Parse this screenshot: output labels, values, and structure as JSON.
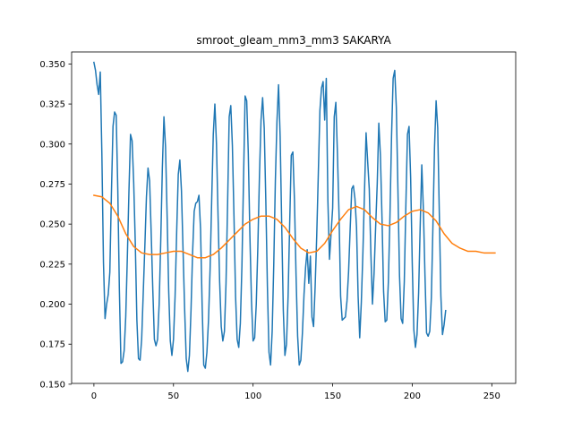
{
  "chart_data": {
    "type": "line",
    "title": "smroot_gleam_mm3_mm3 SAKARYA",
    "xlabel": "",
    "ylabel": "",
    "xlim": [
      -14,
      265
    ],
    "ylim": [
      0.1505,
      0.3575
    ],
    "x_ticks": [
      0,
      50,
      100,
      150,
      200,
      250
    ],
    "y_ticks": [
      0.15,
      0.175,
      0.2,
      0.225,
      0.25,
      0.275,
      0.3,
      0.325,
      0.35
    ],
    "grid": false,
    "legend": "none",
    "series": [
      {
        "color": "#1f77b4",
        "points": [
          [
            0,
            0.351
          ],
          [
            1,
            0.346
          ],
          [
            2,
            0.337
          ],
          [
            3,
            0.331
          ],
          [
            4,
            0.345
          ],
          [
            5,
            0.294
          ],
          [
            6,
            0.226
          ],
          [
            7,
            0.191
          ],
          [
            8,
            0.2
          ],
          [
            9,
            0.206
          ],
          [
            10,
            0.22
          ],
          [
            11,
            0.269
          ],
          [
            12,
            0.311
          ],
          [
            13,
            0.32
          ],
          [
            14,
            0.318
          ],
          [
            15,
            0.272
          ],
          [
            16,
            0.209
          ],
          [
            17,
            0.163
          ],
          [
            18,
            0.164
          ],
          [
            19,
            0.171
          ],
          [
            20,
            0.192
          ],
          [
            21,
            0.229
          ],
          [
            22,
            0.27
          ],
          [
            23,
            0.306
          ],
          [
            24,
            0.302
          ],
          [
            25,
            0.276
          ],
          [
            26,
            0.238
          ],
          [
            27,
            0.19
          ],
          [
            28,
            0.166
          ],
          [
            29,
            0.165
          ],
          [
            30,
            0.178
          ],
          [
            31,
            0.207
          ],
          [
            32,
            0.236
          ],
          [
            33,
            0.267
          ],
          [
            34,
            0.285
          ],
          [
            35,
            0.277
          ],
          [
            36,
            0.244
          ],
          [
            37,
            0.209
          ],
          [
            38,
            0.178
          ],
          [
            39,
            0.174
          ],
          [
            40,
            0.178
          ],
          [
            41,
            0.2
          ],
          [
            42,
            0.24
          ],
          [
            43,
            0.285
          ],
          [
            44,
            0.317
          ],
          [
            45,
            0.298
          ],
          [
            46,
            0.255
          ],
          [
            47,
            0.208
          ],
          [
            48,
            0.177
          ],
          [
            49,
            0.168
          ],
          [
            50,
            0.178
          ],
          [
            51,
            0.205
          ],
          [
            52,
            0.245
          ],
          [
            53,
            0.281
          ],
          [
            54,
            0.29
          ],
          [
            55,
            0.271
          ],
          [
            56,
            0.234
          ],
          [
            57,
            0.197
          ],
          [
            58,
            0.166
          ],
          [
            59,
            0.158
          ],
          [
            60,
            0.168
          ],
          [
            61,
            0.196
          ],
          [
            62,
            0.232
          ],
          [
            63,
            0.258
          ],
          [
            64,
            0.263
          ],
          [
            65,
            0.264
          ],
          [
            66,
            0.268
          ],
          [
            67,
            0.247
          ],
          [
            68,
            0.199
          ],
          [
            69,
            0.162
          ],
          [
            70,
            0.16
          ],
          [
            71,
            0.17
          ],
          [
            72,
            0.19
          ],
          [
            73,
            0.222
          ],
          [
            74,
            0.265
          ],
          [
            75,
            0.306
          ],
          [
            76,
            0.325
          ],
          [
            77,
            0.3
          ],
          [
            78,
            0.255
          ],
          [
            79,
            0.214
          ],
          [
            80,
            0.186
          ],
          [
            81,
            0.177
          ],
          [
            82,
            0.183
          ],
          [
            83,
            0.213
          ],
          [
            84,
            0.263
          ],
          [
            85,
            0.317
          ],
          [
            86,
            0.324
          ],
          [
            87,
            0.299
          ],
          [
            88,
            0.255
          ],
          [
            89,
            0.205
          ],
          [
            90,
            0.178
          ],
          [
            91,
            0.173
          ],
          [
            92,
            0.188
          ],
          [
            93,
            0.224
          ],
          [
            94,
            0.278
          ],
          [
            95,
            0.33
          ],
          [
            96,
            0.327
          ],
          [
            97,
            0.294
          ],
          [
            98,
            0.243
          ],
          [
            99,
            0.202
          ],
          [
            100,
            0.177
          ],
          [
            101,
            0.179
          ],
          [
            102,
            0.2
          ],
          [
            103,
            0.236
          ],
          [
            104,
            0.28
          ],
          [
            105,
            0.315
          ],
          [
            106,
            0.329
          ],
          [
            107,
            0.31
          ],
          [
            108,
            0.265
          ],
          [
            109,
            0.211
          ],
          [
            110,
            0.17
          ],
          [
            111,
            0.162
          ],
          [
            112,
            0.183
          ],
          [
            113,
            0.225
          ],
          [
            114,
            0.277
          ],
          [
            115,
            0.314
          ],
          [
            116,
            0.337
          ],
          [
            117,
            0.305
          ],
          [
            118,
            0.249
          ],
          [
            119,
            0.196
          ],
          [
            120,
            0.168
          ],
          [
            121,
            0.175
          ],
          [
            122,
            0.205
          ],
          [
            123,
            0.25
          ],
          [
            124,
            0.293
          ],
          [
            125,
            0.295
          ],
          [
            126,
            0.265
          ],
          [
            127,
            0.218
          ],
          [
            128,
            0.18
          ],
          [
            129,
            0.162
          ],
          [
            130,
            0.165
          ],
          [
            131,
            0.182
          ],
          [
            132,
            0.206
          ],
          [
            133,
            0.223
          ],
          [
            134,
            0.234
          ],
          [
            135,
            0.213
          ],
          [
            136,
            0.23
          ],
          [
            137,
            0.192
          ],
          [
            138,
            0.186
          ],
          [
            139,
            0.211
          ],
          [
            140,
            0.243
          ],
          [
            141,
            0.282
          ],
          [
            142,
            0.321
          ],
          [
            143,
            0.335
          ],
          [
            144,
            0.339
          ],
          [
            145,
            0.315
          ],
          [
            146,
            0.341
          ],
          [
            147,
            0.265
          ],
          [
            148,
            0.228
          ],
          [
            149,
            0.244
          ],
          [
            150,
            0.26
          ],
          [
            151,
            0.317
          ],
          [
            152,
            0.326
          ],
          [
            153,
            0.294
          ],
          [
            154,
            0.256
          ],
          [
            155,
            0.205
          ],
          [
            156,
            0.19
          ],
          [
            157,
            0.191
          ],
          [
            158,
            0.192
          ],
          [
            159,
            0.202
          ],
          [
            160,
            0.22
          ],
          [
            161,
            0.247
          ],
          [
            162,
            0.272
          ],
          [
            163,
            0.274
          ],
          [
            164,
            0.266
          ],
          [
            165,
            0.248
          ],
          [
            166,
            0.205
          ],
          [
            167,
            0.179
          ],
          [
            168,
            0.201
          ],
          [
            169,
            0.232
          ],
          [
            170,
            0.27
          ],
          [
            171,
            0.307
          ],
          [
            172,
            0.289
          ],
          [
            173,
            0.272
          ],
          [
            174,
            0.232
          ],
          [
            175,
            0.2
          ],
          [
            176,
            0.219
          ],
          [
            177,
            0.248
          ],
          [
            178,
            0.275
          ],
          [
            179,
            0.313
          ],
          [
            180,
            0.293
          ],
          [
            181,
            0.254
          ],
          [
            182,
            0.208
          ],
          [
            183,
            0.189
          ],
          [
            184,
            0.19
          ],
          [
            185,
            0.214
          ],
          [
            186,
            0.255
          ],
          [
            187,
            0.305
          ],
          [
            188,
            0.341
          ],
          [
            189,
            0.346
          ],
          [
            190,
            0.323
          ],
          [
            191,
            0.272
          ],
          [
            192,
            0.218
          ],
          [
            193,
            0.191
          ],
          [
            194,
            0.188
          ],
          [
            195,
            0.214
          ],
          [
            196,
            0.262
          ],
          [
            197,
            0.306
          ],
          [
            198,
            0.311
          ],
          [
            199,
            0.279
          ],
          [
            200,
            0.226
          ],
          [
            201,
            0.184
          ],
          [
            202,
            0.173
          ],
          [
            203,
            0.181
          ],
          [
            204,
            0.207
          ],
          [
            205,
            0.249
          ],
          [
            206,
            0.287
          ],
          [
            207,
            0.259
          ],
          [
            208,
            0.218
          ],
          [
            209,
            0.182
          ],
          [
            210,
            0.18
          ],
          [
            211,
            0.183
          ],
          [
            212,
            0.204
          ],
          [
            213,
            0.249
          ],
          [
            214,
            0.298
          ],
          [
            215,
            0.327
          ],
          [
            216,
            0.31
          ],
          [
            217,
            0.257
          ],
          [
            218,
            0.205
          ],
          [
            219,
            0.181
          ],
          [
            220,
            0.187
          ],
          [
            221,
            0.196
          ]
        ]
      },
      {
        "color": "#ff7f0e",
        "points": [
          [
            0,
            0.268
          ],
          [
            5,
            0.267
          ],
          [
            10,
            0.263
          ],
          [
            15,
            0.255
          ],
          [
            20,
            0.244
          ],
          [
            25,
            0.236
          ],
          [
            30,
            0.232
          ],
          [
            35,
            0.231
          ],
          [
            40,
            0.231
          ],
          [
            45,
            0.232
          ],
          [
            50,
            0.233
          ],
          [
            55,
            0.233
          ],
          [
            60,
            0.231
          ],
          [
            65,
            0.229
          ],
          [
            70,
            0.229
          ],
          [
            75,
            0.231
          ],
          [
            80,
            0.235
          ],
          [
            85,
            0.24
          ],
          [
            90,
            0.245
          ],
          [
            95,
            0.25
          ],
          [
            100,
            0.253
          ],
          [
            105,
            0.255
          ],
          [
            110,
            0.255
          ],
          [
            115,
            0.253
          ],
          [
            120,
            0.248
          ],
          [
            125,
            0.241
          ],
          [
            130,
            0.235
          ],
          [
            135,
            0.232
          ],
          [
            140,
            0.233
          ],
          [
            145,
            0.238
          ],
          [
            150,
            0.246
          ],
          [
            155,
            0.253
          ],
          [
            160,
            0.259
          ],
          [
            165,
            0.261
          ],
          [
            170,
            0.259
          ],
          [
            175,
            0.254
          ],
          [
            180,
            0.25
          ],
          [
            185,
            0.249
          ],
          [
            190,
            0.251
          ],
          [
            195,
            0.255
          ],
          [
            200,
            0.258
          ],
          [
            205,
            0.259
          ],
          [
            210,
            0.257
          ],
          [
            215,
            0.252
          ],
          [
            220,
            0.244
          ],
          [
            225,
            0.238
          ],
          [
            230,
            0.235
          ],
          [
            235,
            0.233
          ],
          [
            240,
            0.233
          ],
          [
            245,
            0.232
          ],
          [
            250,
            0.232
          ],
          [
            252,
            0.232
          ]
        ]
      }
    ]
  }
}
